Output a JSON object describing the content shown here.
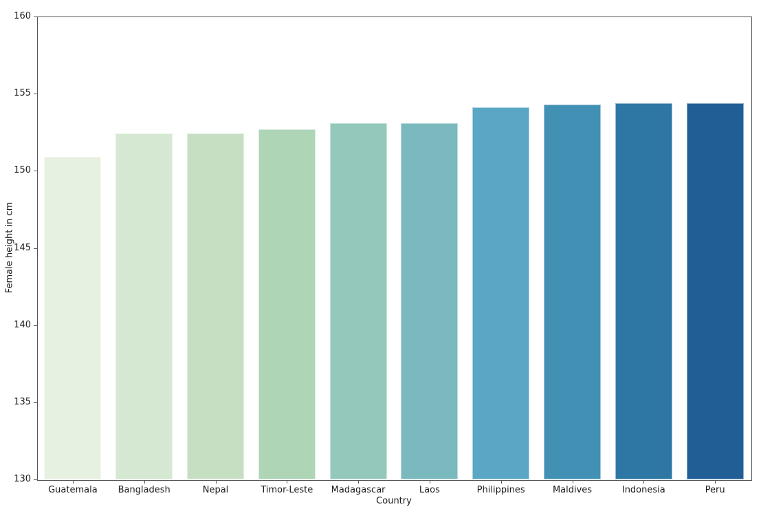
{
  "chart_data": {
    "type": "bar",
    "title": "",
    "xlabel": "Country",
    "ylabel": "Female height in cm",
    "categories": [
      "Guatemala",
      "Bangladesh",
      "Nepal",
      "Timor-Leste",
      "Madagascar",
      "Laos",
      "Philippines",
      "Maldives",
      "Indonesia",
      "Peru"
    ],
    "values": [
      150.9,
      152.4,
      152.4,
      152.7,
      153.1,
      153.1,
      154.1,
      154.3,
      154.4,
      154.4
    ],
    "bar_colors": [
      "#e6f1e2",
      "#d5e8d1",
      "#c6dfc3",
      "#add5b6",
      "#93c8ba",
      "#7ab9bd",
      "#5aa6c5",
      "#4390b5",
      "#2e77a5",
      "#215e95"
    ],
    "ylim": [
      130,
      160
    ],
    "yticks": [
      130,
      135,
      140,
      145,
      150,
      155,
      160
    ],
    "grid": false,
    "legend": "none",
    "bar_width_fraction": 0.8,
    "style": {
      "background": "#ffffff",
      "spine_color": "#555555",
      "text_color": "#1a1a1a"
    }
  }
}
